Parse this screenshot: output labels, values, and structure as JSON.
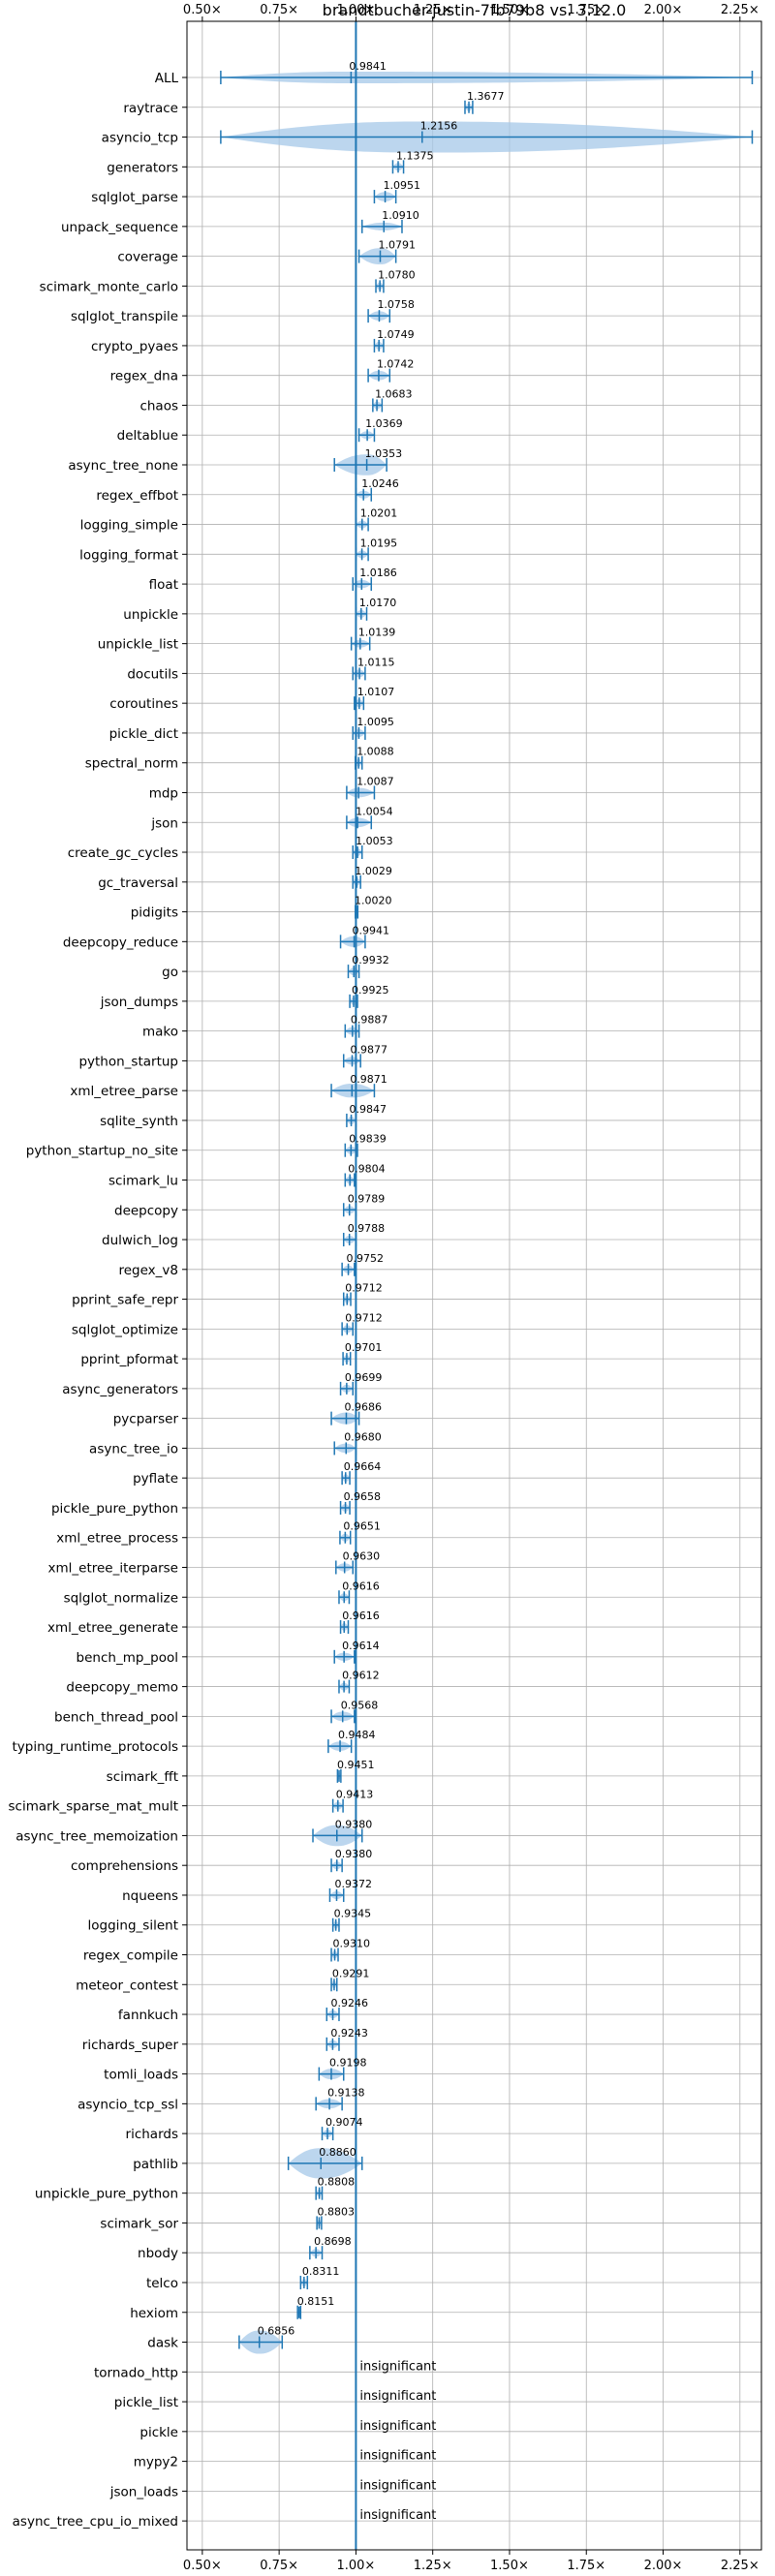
{
  "chart_data": {
    "type": "violin",
    "title": "brandtbucher-justin-7fb79b8 vs. 3.12.0",
    "xlabel": "",
    "ylabel": "",
    "xlim": [
      0.45,
      2.32
    ],
    "x_ticks": [
      0.5,
      0.75,
      1.0,
      1.25,
      1.5,
      1.75,
      2.0,
      2.25
    ],
    "x_tick_labels": [
      "0.50×",
      "0.75×",
      "1.00×",
      "1.25×",
      "1.50×",
      "1.75×",
      "2.00×",
      "2.25×"
    ],
    "grid": true,
    "reference_line": 1.0,
    "insignificant_text": "insignificant",
    "colors": {
      "accent": "#1f77b4",
      "violin": "#a6c8e8",
      "grid": "#b0b0b0"
    },
    "rows": [
      {
        "name": "ALL",
        "label": "0.9841",
        "value": 0.9841,
        "min": 0.56,
        "max": 2.29,
        "width": 0.05,
        "sig": true
      },
      {
        "name": "raytrace",
        "label": "1.3677",
        "value": 1.3677,
        "min": 1.355,
        "max": 1.38,
        "width": 0.01,
        "sig": true
      },
      {
        "name": "asyncio_tcp",
        "label": "1.2156",
        "value": 1.2156,
        "min": 0.56,
        "max": 2.29,
        "width": 0.3,
        "sig": true
      },
      {
        "name": "generators",
        "label": "1.1375",
        "value": 1.1375,
        "min": 1.12,
        "max": 1.155,
        "width": 0.02,
        "sig": true
      },
      {
        "name": "sqlglot_parse",
        "label": "1.0951",
        "value": 1.0951,
        "min": 1.06,
        "max": 1.13,
        "width": 0.04,
        "sig": true
      },
      {
        "name": "unpack_sequence",
        "label": "1.0910",
        "value": 1.091,
        "min": 1.02,
        "max": 1.15,
        "width": 0.03,
        "sig": true
      },
      {
        "name": "coverage",
        "label": "1.0791",
        "value": 1.0791,
        "min": 1.01,
        "max": 1.13,
        "width": 0.07,
        "sig": true
      },
      {
        "name": "scimark_monte_carlo",
        "label": "1.0780",
        "value": 1.078,
        "min": 1.065,
        "max": 1.09,
        "width": 0.02,
        "sig": true
      },
      {
        "name": "sqlglot_transpile",
        "label": "1.0758",
        "value": 1.0758,
        "min": 1.04,
        "max": 1.11,
        "width": 0.04,
        "sig": true
      },
      {
        "name": "crypto_pyaes",
        "label": "1.0749",
        "value": 1.0749,
        "min": 1.06,
        "max": 1.09,
        "width": 0.02,
        "sig": true
      },
      {
        "name": "regex_dna",
        "label": "1.0742",
        "value": 1.0742,
        "min": 1.04,
        "max": 1.11,
        "width": 0.04,
        "sig": true
      },
      {
        "name": "chaos",
        "label": "1.0683",
        "value": 1.0683,
        "min": 1.055,
        "max": 1.085,
        "width": 0.02,
        "sig": true
      },
      {
        "name": "deltablue",
        "label": "1.0369",
        "value": 1.0369,
        "min": 1.01,
        "max": 1.06,
        "width": 0.03,
        "sig": true
      },
      {
        "name": "async_tree_none",
        "label": "1.0353",
        "value": 1.0353,
        "min": 0.93,
        "max": 1.1,
        "width": 0.09,
        "sig": true
      },
      {
        "name": "regex_effbot",
        "label": "1.0246",
        "value": 1.0246,
        "min": 1.0,
        "max": 1.05,
        "width": 0.03,
        "sig": true
      },
      {
        "name": "logging_simple",
        "label": "1.0201",
        "value": 1.0201,
        "min": 1.0,
        "max": 1.04,
        "width": 0.03,
        "sig": true
      },
      {
        "name": "logging_format",
        "label": "1.0195",
        "value": 1.0195,
        "min": 1.0,
        "max": 1.04,
        "width": 0.03,
        "sig": true
      },
      {
        "name": "float",
        "label": "1.0186",
        "value": 1.0186,
        "min": 0.99,
        "max": 1.05,
        "width": 0.035,
        "sig": true
      },
      {
        "name": "unpickle",
        "label": "1.0170",
        "value": 1.017,
        "min": 1.0,
        "max": 1.035,
        "width": 0.025,
        "sig": true
      },
      {
        "name": "unpickle_list",
        "label": "1.0139",
        "value": 1.0139,
        "min": 0.985,
        "max": 1.045,
        "width": 0.03,
        "sig": true
      },
      {
        "name": "docutils",
        "label": "1.0115",
        "value": 1.0115,
        "min": 0.99,
        "max": 1.03,
        "width": 0.03,
        "sig": true
      },
      {
        "name": "coroutines",
        "label": "1.0107",
        "value": 1.0107,
        "min": 0.995,
        "max": 1.025,
        "width": 0.02,
        "sig": true
      },
      {
        "name": "pickle_dict",
        "label": "1.0095",
        "value": 1.0095,
        "min": 0.99,
        "max": 1.03,
        "width": 0.025,
        "sig": true
      },
      {
        "name": "spectral_norm",
        "label": "1.0088",
        "value": 1.0088,
        "min": 0.998,
        "max": 1.02,
        "width": 0.015,
        "sig": true
      },
      {
        "name": "mdp",
        "label": "1.0087",
        "value": 1.0087,
        "min": 0.97,
        "max": 1.06,
        "width": 0.04,
        "sig": true
      },
      {
        "name": "json",
        "label": "1.0054",
        "value": 1.0054,
        "min": 0.97,
        "max": 1.05,
        "width": 0.04,
        "sig": true
      },
      {
        "name": "create_gc_cycles",
        "label": "1.0053",
        "value": 1.0053,
        "min": 0.99,
        "max": 1.02,
        "width": 0.02,
        "sig": true
      },
      {
        "name": "gc_traversal",
        "label": "1.0029",
        "value": 1.0029,
        "min": 0.99,
        "max": 1.015,
        "width": 0.02,
        "sig": true
      },
      {
        "name": "pidigits",
        "label": "1.0020",
        "value": 1.002,
        "min": 0.998,
        "max": 1.006,
        "width": 0.006,
        "sig": true
      },
      {
        "name": "deepcopy_reduce",
        "label": "0.9941",
        "value": 0.9941,
        "min": 0.95,
        "max": 1.03,
        "width": 0.045,
        "sig": true
      },
      {
        "name": "go",
        "label": "0.9932",
        "value": 0.9932,
        "min": 0.975,
        "max": 1.01,
        "width": 0.02,
        "sig": true
      },
      {
        "name": "json_dumps",
        "label": "0.9925",
        "value": 0.9925,
        "min": 0.98,
        "max": 1.005,
        "width": 0.015,
        "sig": true
      },
      {
        "name": "mako",
        "label": "0.9887",
        "value": 0.9887,
        "min": 0.965,
        "max": 1.01,
        "width": 0.025,
        "sig": true
      },
      {
        "name": "python_startup",
        "label": "0.9877",
        "value": 0.9877,
        "min": 0.96,
        "max": 1.015,
        "width": 0.03,
        "sig": true
      },
      {
        "name": "xml_etree_parse",
        "label": "0.9871",
        "value": 0.9871,
        "min": 0.92,
        "max": 1.06,
        "width": 0.06,
        "sig": true
      },
      {
        "name": "sqlite_synth",
        "label": "0.9847",
        "value": 0.9847,
        "min": 0.97,
        "max": 1.0,
        "width": 0.02,
        "sig": true
      },
      {
        "name": "python_startup_no_site",
        "label": "0.9839",
        "value": 0.9839,
        "min": 0.965,
        "max": 1.005,
        "width": 0.025,
        "sig": true
      },
      {
        "name": "scimark_lu",
        "label": "0.9804",
        "value": 0.9804,
        "min": 0.965,
        "max": 0.995,
        "width": 0.02,
        "sig": true
      },
      {
        "name": "deepcopy",
        "label": "0.9789",
        "value": 0.9789,
        "min": 0.96,
        "max": 1.0,
        "width": 0.025,
        "sig": true
      },
      {
        "name": "dulwich_log",
        "label": "0.9788",
        "value": 0.9788,
        "min": 0.96,
        "max": 1.0,
        "width": 0.025,
        "sig": true
      },
      {
        "name": "regex_v8",
        "label": "0.9752",
        "value": 0.9752,
        "min": 0.955,
        "max": 0.995,
        "width": 0.025,
        "sig": true
      },
      {
        "name": "pprint_safe_repr",
        "label": "0.9712",
        "value": 0.9712,
        "min": 0.96,
        "max": 0.983,
        "width": 0.015,
        "sig": true
      },
      {
        "name": "sqlglot_optimize",
        "label": "0.9712",
        "value": 0.9712,
        "min": 0.955,
        "max": 0.99,
        "width": 0.02,
        "sig": true
      },
      {
        "name": "pprint_pformat",
        "label": "0.9701",
        "value": 0.9701,
        "min": 0.958,
        "max": 0.982,
        "width": 0.015,
        "sig": true
      },
      {
        "name": "async_generators",
        "label": "0.9699",
        "value": 0.9699,
        "min": 0.95,
        "max": 0.99,
        "width": 0.025,
        "sig": true
      },
      {
        "name": "pycparser",
        "label": "0.9686",
        "value": 0.9686,
        "min": 0.92,
        "max": 1.01,
        "width": 0.05,
        "sig": true
      },
      {
        "name": "async_tree_io",
        "label": "0.9680",
        "value": 0.968,
        "min": 0.93,
        "max": 1.0,
        "width": 0.04,
        "sig": true
      },
      {
        "name": "pyflate",
        "label": "0.9664",
        "value": 0.9664,
        "min": 0.955,
        "max": 0.98,
        "width": 0.015,
        "sig": true
      },
      {
        "name": "pickle_pure_python",
        "label": "0.9658",
        "value": 0.9658,
        "min": 0.95,
        "max": 0.98,
        "width": 0.02,
        "sig": true
      },
      {
        "name": "xml_etree_process",
        "label": "0.9651",
        "value": 0.9651,
        "min": 0.948,
        "max": 0.982,
        "width": 0.02,
        "sig": true
      },
      {
        "name": "xml_etree_iterparse",
        "label": "0.9630",
        "value": 0.963,
        "min": 0.935,
        "max": 0.99,
        "width": 0.035,
        "sig": true
      },
      {
        "name": "sqlglot_normalize",
        "label": "0.9616",
        "value": 0.9616,
        "min": 0.945,
        "max": 0.978,
        "width": 0.02,
        "sig": true
      },
      {
        "name": "xml_etree_generate",
        "label": "0.9616",
        "value": 0.9616,
        "min": 0.95,
        "max": 0.975,
        "width": 0.015,
        "sig": true
      },
      {
        "name": "bench_mp_pool",
        "label": "0.9614",
        "value": 0.9614,
        "min": 0.93,
        "max": 0.995,
        "width": 0.035,
        "sig": true
      },
      {
        "name": "deepcopy_memo",
        "label": "0.9612",
        "value": 0.9612,
        "min": 0.945,
        "max": 0.978,
        "width": 0.02,
        "sig": true
      },
      {
        "name": "bench_thread_pool",
        "label": "0.9568",
        "value": 0.9568,
        "min": 0.92,
        "max": 0.995,
        "width": 0.04,
        "sig": true
      },
      {
        "name": "typing_runtime_protocols",
        "label": "0.9484",
        "value": 0.9484,
        "min": 0.91,
        "max": 0.985,
        "width": 0.04,
        "sig": true
      },
      {
        "name": "scimark_fft",
        "label": "0.9451",
        "value": 0.9451,
        "min": 0.94,
        "max": 0.951,
        "width": 0.01,
        "sig": true
      },
      {
        "name": "scimark_sparse_mat_mult",
        "label": "0.9413",
        "value": 0.9413,
        "min": 0.925,
        "max": 0.958,
        "width": 0.02,
        "sig": true
      },
      {
        "name": "async_tree_memoization",
        "label": "0.9380",
        "value": 0.938,
        "min": 0.86,
        "max": 1.02,
        "width": 0.09,
        "sig": true
      },
      {
        "name": "comprehensions",
        "label": "0.9380",
        "value": 0.938,
        "min": 0.92,
        "max": 0.955,
        "width": 0.02,
        "sig": true
      },
      {
        "name": "nqueens",
        "label": "0.9372",
        "value": 0.9372,
        "min": 0.915,
        "max": 0.96,
        "width": 0.025,
        "sig": true
      },
      {
        "name": "logging_silent",
        "label": "0.9345",
        "value": 0.9345,
        "min": 0.925,
        "max": 0.945,
        "width": 0.012,
        "sig": true
      },
      {
        "name": "regex_compile",
        "label": "0.9310",
        "value": 0.931,
        "min": 0.92,
        "max": 0.942,
        "width": 0.012,
        "sig": true
      },
      {
        "name": "meteor_contest",
        "label": "0.9291",
        "value": 0.9291,
        "min": 0.92,
        "max": 0.938,
        "width": 0.01,
        "sig": true
      },
      {
        "name": "fannkuch",
        "label": "0.9246",
        "value": 0.9246,
        "min": 0.905,
        "max": 0.945,
        "width": 0.02,
        "sig": true
      },
      {
        "name": "richards_super",
        "label": "0.9243",
        "value": 0.9243,
        "min": 0.905,
        "max": 0.945,
        "width": 0.02,
        "sig": true
      },
      {
        "name": "tomli_loads",
        "label": "0.9198",
        "value": 0.9198,
        "min": 0.88,
        "max": 0.96,
        "width": 0.045,
        "sig": true
      },
      {
        "name": "asyncio_tcp_ssl",
        "label": "0.9138",
        "value": 0.9138,
        "min": 0.87,
        "max": 0.955,
        "width": 0.04,
        "sig": true
      },
      {
        "name": "richards",
        "label": "0.9074",
        "value": 0.9074,
        "min": 0.89,
        "max": 0.925,
        "width": 0.02,
        "sig": true
      },
      {
        "name": "pathlib",
        "label": "0.8860",
        "value": 0.886,
        "min": 0.78,
        "max": 1.02,
        "width": 0.13,
        "sig": true
      },
      {
        "name": "unpickle_pure_python",
        "label": "0.8808",
        "value": 0.8808,
        "min": 0.87,
        "max": 0.89,
        "width": 0.012,
        "sig": true
      },
      {
        "name": "scimark_sor",
        "label": "0.8803",
        "value": 0.8803,
        "min": 0.873,
        "max": 0.888,
        "width": 0.008,
        "sig": true
      },
      {
        "name": "nbody",
        "label": "0.8698",
        "value": 0.8698,
        "min": 0.85,
        "max": 0.89,
        "width": 0.02,
        "sig": true
      },
      {
        "name": "telco",
        "label": "0.8311",
        "value": 0.8311,
        "min": 0.82,
        "max": 0.842,
        "width": 0.012,
        "sig": true
      },
      {
        "name": "hexiom",
        "label": "0.8151",
        "value": 0.8151,
        "min": 0.81,
        "max": 0.82,
        "width": 0.008,
        "sig": true
      },
      {
        "name": "dask",
        "label": "0.6856",
        "value": 0.6856,
        "min": 0.62,
        "max": 0.76,
        "width": 0.1,
        "sig": true
      },
      {
        "name": "tornado_http",
        "label": "insignificant",
        "value": 1.0,
        "sig": false
      },
      {
        "name": "pickle_list",
        "label": "insignificant",
        "value": 1.0,
        "sig": false
      },
      {
        "name": "pickle",
        "label": "insignificant",
        "value": 1.0,
        "sig": false
      },
      {
        "name": "mypy2",
        "label": "insignificant",
        "value": 1.0,
        "sig": false
      },
      {
        "name": "json_loads",
        "label": "insignificant",
        "value": 1.0,
        "sig": false
      },
      {
        "name": "async_tree_cpu_io_mixed",
        "label": "insignificant",
        "value": 1.0,
        "sig": false
      }
    ]
  }
}
